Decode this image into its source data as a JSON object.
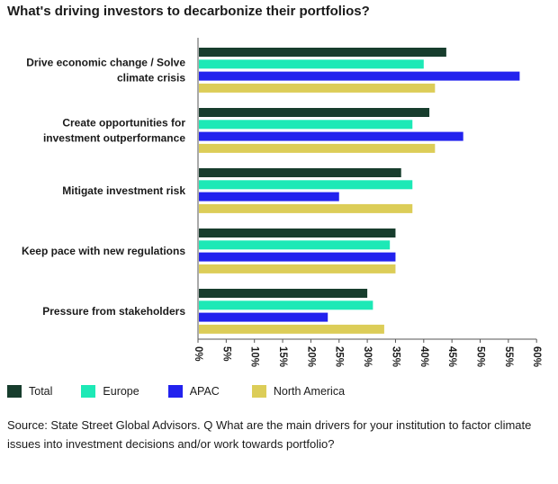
{
  "chart_data": {
    "type": "bar",
    "orientation": "horizontal",
    "title": "What's driving investors to decarbonize their portfolios?",
    "categories": [
      [
        "Drive economic change / Solve",
        "climate crisis"
      ],
      [
        "Create opportunities for",
        "investment outperformance"
      ],
      [
        "Mitigate investment risk"
      ],
      [
        "Keep pace with new regulations"
      ],
      [
        "Pressure from stakeholders"
      ]
    ],
    "series": [
      {
        "name": "Total",
        "color": "#173d2d",
        "values": [
          44,
          41,
          36,
          35,
          30
        ]
      },
      {
        "name": "Europe",
        "color": "#1de9b6",
        "values": [
          40,
          38,
          38,
          34,
          31
        ]
      },
      {
        "name": "APAC",
        "color": "#2222ee",
        "values": [
          57,
          47,
          25,
          35,
          23
        ]
      },
      {
        "name": "North America",
        "color": "#dccd58",
        "values": [
          42,
          42,
          38,
          35,
          33
        ]
      }
    ],
    "xlim": [
      0,
      60
    ],
    "ticks": [
      "0%",
      "5%",
      "10%",
      "15%",
      "20%",
      "25%",
      "30%",
      "35%",
      "40%",
      "45%",
      "50%",
      "55%",
      "60%"
    ],
    "legend_position": "bottom-left",
    "grid": false
  },
  "source": "Source: State Street Global Advisors. Q What are the main drivers for your institution to factor climate issues into investment decisions and/or work towards portfolio?"
}
